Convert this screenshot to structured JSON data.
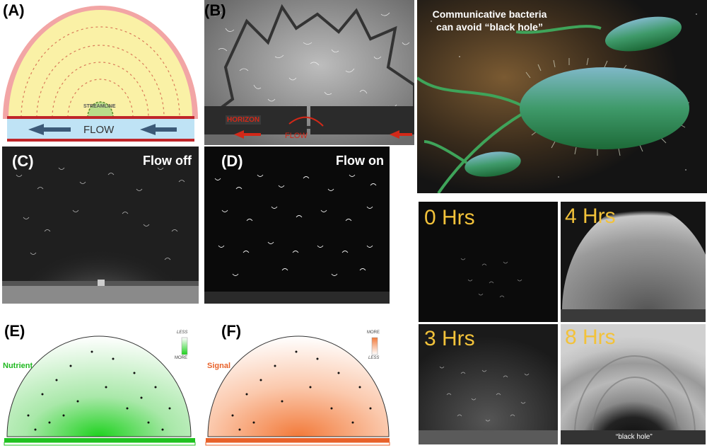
{
  "panels": {
    "a": {
      "label": "(A)",
      "streamline": "STREAMLINE",
      "flow": "FLOW"
    },
    "b": {
      "label": "(B)",
      "horizon": "HORIZON",
      "flow": "FLOW"
    },
    "c": {
      "label": "(C)",
      "caption": "Flow off"
    },
    "d": {
      "label": "(D)",
      "caption": "Flow on"
    },
    "e": {
      "label": "(E)",
      "name": "Nutrient",
      "scale_top": "LESS",
      "scale_bottom": "MORE",
      "color": "#1fb81f"
    },
    "f": {
      "label": "(F)",
      "name": "Signal",
      "scale_top": "MORE",
      "scale_bottom": "LESS",
      "color": "#e8622a"
    }
  },
  "illustration": {
    "caption_line1": "Communicative bacteria",
    "caption_line2": "can avoid “black hole”"
  },
  "timelapse": {
    "t0": "0 Hrs",
    "t4": "4 Hrs",
    "t3": "3 Hrs",
    "t8": "8 Hrs",
    "black_hole": "“black hole”"
  }
}
